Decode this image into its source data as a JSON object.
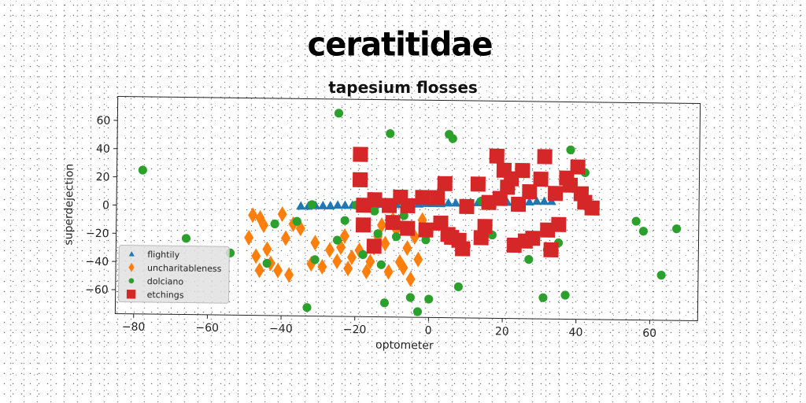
{
  "heading": "ceratitidae",
  "chart_data": {
    "type": "scatter",
    "title": "tapesium flosses",
    "xlabel": "optometer",
    "ylabel": "superdejection",
    "xlim": [
      -85,
      73
    ],
    "ylim": [
      -77,
      77
    ],
    "xticks": [
      -80,
      -60,
      -40,
      -20,
      0,
      20,
      40,
      60
    ],
    "yticks": [
      -60,
      -40,
      -20,
      0,
      20,
      40,
      60
    ],
    "grid": false,
    "legend_position": "lower-left",
    "series": [
      {
        "name": "flightily",
        "marker": "triangle",
        "color": "#1f77b4",
        "points": [
          [
            -35,
            1
          ],
          [
            -33,
            1
          ],
          [
            -31,
            1.5
          ],
          [
            -29,
            1.5
          ],
          [
            -27,
            1.5
          ],
          [
            -25,
            2
          ],
          [
            -23,
            2
          ],
          [
            -21,
            2
          ],
          [
            -19,
            2.5
          ],
          [
            -17,
            2.5
          ],
          [
            -15,
            2.5
          ],
          [
            -13,
            3
          ],
          [
            -11,
            3
          ],
          [
            -9,
            3
          ],
          [
            -7,
            3.5
          ],
          [
            -5,
            3.5
          ],
          [
            -3,
            3.5
          ],
          [
            -1,
            4
          ],
          [
            1,
            4
          ],
          [
            3,
            4
          ],
          [
            5,
            4.5
          ],
          [
            7,
            4.5
          ],
          [
            9,
            4.5
          ],
          [
            11,
            5
          ],
          [
            13,
            5
          ],
          [
            15,
            5
          ],
          [
            17,
            5.5
          ],
          [
            19,
            5.5
          ],
          [
            21,
            5.5
          ],
          [
            23,
            6
          ],
          [
            25,
            6
          ],
          [
            27,
            6
          ],
          [
            29,
            6.5
          ],
          [
            31,
            6.5
          ],
          [
            33,
            6.5
          ]
        ]
      },
      {
        "name": "uncharitableness",
        "marker": "diamond",
        "color": "#ff7f0e",
        "points": [
          [
            -48,
            -6
          ],
          [
            -46,
            -8
          ],
          [
            -49,
            -22
          ],
          [
            -47,
            -35
          ],
          [
            -44,
            -30
          ],
          [
            -46,
            -45
          ],
          [
            -43,
            -40
          ],
          [
            -41,
            -45
          ],
          [
            -39,
            -22
          ],
          [
            -38,
            -48
          ],
          [
            -37,
            -12
          ],
          [
            -35,
            -15
          ],
          [
            -32,
            -40
          ],
          [
            -31,
            -25
          ],
          [
            -29,
            -42
          ],
          [
            -27,
            -30
          ],
          [
            -25,
            -38
          ],
          [
            -24,
            -28
          ],
          [
            -23,
            -20
          ],
          [
            -22,
            -43
          ],
          [
            -21,
            -35
          ],
          [
            -19,
            -30
          ],
          [
            -17,
            -45
          ],
          [
            -16,
            -38
          ],
          [
            -15,
            -28
          ],
          [
            -14,
            -20
          ],
          [
            -13,
            -12
          ],
          [
            -12,
            -25
          ],
          [
            -11,
            -45
          ],
          [
            -10,
            -8
          ],
          [
            -9,
            -15
          ],
          [
            -8,
            -38
          ],
          [
            -7,
            -42
          ],
          [
            -6,
            -28
          ],
          [
            -5,
            -50
          ],
          [
            -4,
            -20
          ],
          [
            -3,
            -36
          ],
          [
            -2,
            -8
          ],
          [
            -40,
            -5
          ],
          [
            -45,
            -13
          ]
        ]
      },
      {
        "name": "dolciano",
        "marker": "circle",
        "color": "#2ca02c",
        "points": [
          [
            -78,
            25
          ],
          [
            -66,
            -23
          ],
          [
            -54,
            -33
          ],
          [
            -44,
            -40
          ],
          [
            -42,
            -12
          ],
          [
            -36,
            -10
          ],
          [
            -32,
            2
          ],
          [
            -33,
            -71
          ],
          [
            -31,
            -37
          ],
          [
            -25,
            -23
          ],
          [
            -25,
            67
          ],
          [
            -23,
            -9
          ],
          [
            -20,
            2
          ],
          [
            -18,
            -33
          ],
          [
            -15,
            -2
          ],
          [
            -14,
            -18
          ],
          [
            -13,
            -40
          ],
          [
            -12,
            -67
          ],
          [
            -11,
            53
          ],
          [
            -9,
            -20
          ],
          [
            -7,
            -5
          ],
          [
            -5,
            -63
          ],
          [
            -3,
            -73
          ],
          [
            -1,
            -22
          ],
          [
            0,
            -64
          ],
          [
            5,
            53
          ],
          [
            6,
            50
          ],
          [
            7,
            -20
          ],
          [
            8,
            -55
          ],
          [
            9,
            -28
          ],
          [
            10,
            -26
          ],
          [
            14,
            6
          ],
          [
            17,
            -18
          ],
          [
            27,
            -35
          ],
          [
            31,
            -62
          ],
          [
            32,
            -28
          ],
          [
            35,
            -23
          ],
          [
            37,
            -60
          ],
          [
            38,
            43
          ],
          [
            42,
            27
          ],
          [
            56,
            -7
          ],
          [
            58,
            -14
          ],
          [
            63,
            -45
          ],
          [
            67,
            -12
          ]
        ]
      },
      {
        "name": "etchings",
        "marker": "square",
        "color": "#d62728",
        "points": [
          [
            -19,
            38
          ],
          [
            -19,
            20
          ],
          [
            -18,
            2
          ],
          [
            -18,
            -12
          ],
          [
            -15,
            6
          ],
          [
            -15,
            -27
          ],
          [
            -11,
            2
          ],
          [
            -10,
            -10
          ],
          [
            -8,
            8
          ],
          [
            -6,
            2
          ],
          [
            -6,
            -14
          ],
          [
            -2,
            8
          ],
          [
            -1,
            -15
          ],
          [
            2,
            8
          ],
          [
            3,
            -10
          ],
          [
            4,
            18
          ],
          [
            5,
            -18
          ],
          [
            6,
            -20
          ],
          [
            8,
            -22
          ],
          [
            9,
            -28
          ],
          [
            10,
            2
          ],
          [
            13,
            18
          ],
          [
            14,
            -20
          ],
          [
            15,
            -12
          ],
          [
            16,
            5
          ],
          [
            18,
            38
          ],
          [
            19,
            8
          ],
          [
            20,
            28
          ],
          [
            21,
            16
          ],
          [
            22,
            22
          ],
          [
            23,
            -25
          ],
          [
            24,
            4
          ],
          [
            25,
            28
          ],
          [
            26,
            -22
          ],
          [
            27,
            13
          ],
          [
            28,
            -20
          ],
          [
            30,
            22
          ],
          [
            31,
            38
          ],
          [
            32,
            -14
          ],
          [
            33,
            -28
          ],
          [
            34,
            12
          ],
          [
            35,
            -10
          ],
          [
            37,
            23
          ],
          [
            38,
            18
          ],
          [
            40,
            31
          ],
          [
            41,
            12
          ],
          [
            42,
            6
          ],
          [
            44,
            2
          ]
        ]
      }
    ]
  }
}
